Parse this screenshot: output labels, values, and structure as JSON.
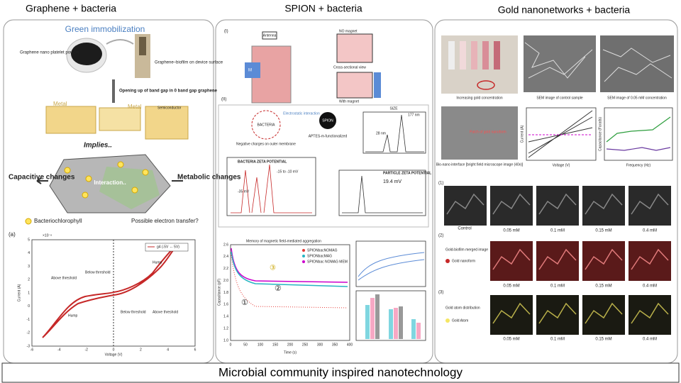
{
  "graphene": {
    "title": "Graphene + bacteria",
    "immobilization": "Green immobilization",
    "powder": "Graphene nano platelet powder",
    "device": "Graphene–biofilm on device surface",
    "bandgap": "Opening up of band gap in 0 band gap graphene",
    "metal": "Metal",
    "semiconductor": "Semiconductor",
    "implies": "Implies..",
    "interaction": "Interaction..",
    "capacitive": "Capacitive changes",
    "metabolic": "Metabolic changes",
    "bacteriochlorophyll": "Bacteriochlorophyll",
    "electron": "Possible electron transfer?",
    "graph": {
      "panel": "(a)",
      "legend": "g4 (-5V ↔ 5V)",
      "xlabel": "Voltage (V)",
      "ylabel": "Current (A)",
      "scale": "×10⁻⁸",
      "xticks": [
        "-6",
        "-4",
        "-2",
        "0",
        "2",
        "4",
        "6"
      ],
      "yticks": [
        "-3",
        "-2",
        "-1",
        "0",
        "1",
        "2",
        "3",
        "4",
        "5"
      ],
      "hump_left": "Hump",
      "hump_right": "Hump",
      "above_left": "Above threshold",
      "below_left": "Below threshold",
      "below_right": "Below threshold",
      "above_right": "Above threshold"
    }
  },
  "spion": {
    "title": "SPION + bacteria",
    "part1": "(I)",
    "antenna": "Antenna",
    "no_magnet": "NO magnet",
    "with_magnet": "With magnet",
    "cross_section": "Cross-sectional view",
    "magnet": "M",
    "part2": "(II)",
    "electrostatic": "Electrostatic interaction",
    "bacteria": "BACTERIA",
    "spion": "SPION",
    "negative": "Negative charges on outer membrane",
    "aptes": "APTES-m-functionalized",
    "size": "SIZE",
    "size_big": "177 nm",
    "size_small": "28 nm",
    "bacteria_zeta": "BACTERIA ZETA POTENTIAL",
    "zeta_a": "-35 mV",
    "zeta_b": "-15 to -10 mV",
    "particle_zeta": "PARTICLE ZETA POTENTIAL",
    "zeta_p": "19.4 mV",
    "graph": {
      "title": "Memory of magnetic field-mediated aggregation",
      "xlabel": "Time (s)",
      "ylabel": "Capacitance (pF)",
      "xticks": [
        "0",
        "50",
        "100",
        "150",
        "200",
        "250",
        "300",
        "350",
        "400"
      ],
      "yticks": [
        "1.0",
        "1.2",
        "1.4",
        "1.6",
        "1.8",
        "2.0",
        "2.2",
        "2.4",
        "2.6"
      ],
      "legend": [
        "SPIONbacNOMAG",
        "SPIONbacMAG",
        "SPIONbac NOMAG MEM"
      ],
      "marks": [
        "①",
        "②",
        "③"
      ]
    }
  },
  "gold": {
    "title": "Gold nanonetworks + bacteria",
    "increasing": "Increasing gold concentration",
    "sem_control": "SEM image of control sample",
    "sem_005": "SEM image of 0.05 mM concentration",
    "patch": "Patch of gold nanoform",
    "bionano": "Bio-nano interface [bright field microscope image (40x)]",
    "iv_xlabel": "Voltage (V)",
    "iv_ylabel": "Current (A)",
    "cf_xlabel": "Frequency (Hz)",
    "cf_ylabel": "Capacitance (Farads)",
    "row1": "(1)",
    "row2": "(2)",
    "row3": "(3)",
    "control": "Control",
    "concentrations": [
      "0.05 mM",
      "0.1 mM",
      "0.15 mM",
      "0.4 mM"
    ],
    "merged": "Gold-biofilm merged image",
    "nanoform": "Gold nanoform",
    "distribution": "Gold atom distribution",
    "atom": "Gold Atom"
  },
  "footer": "Microbial community inspired nanotechnology"
}
